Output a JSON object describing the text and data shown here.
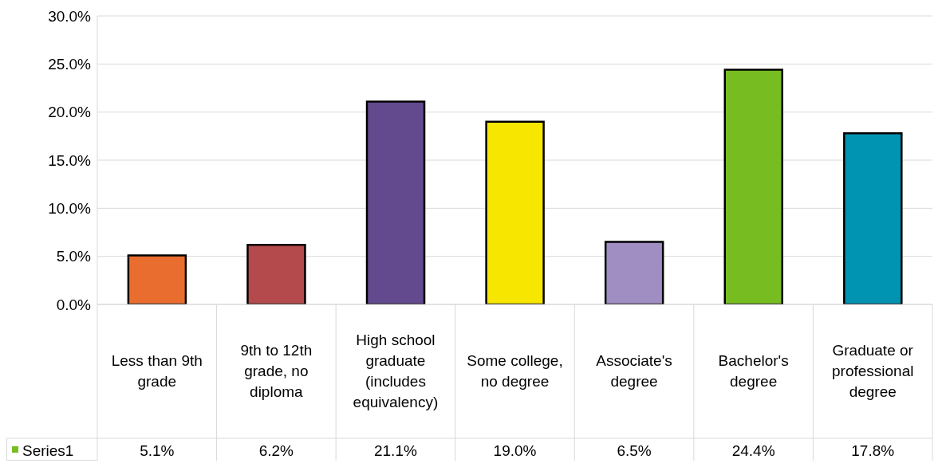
{
  "chart_data": {
    "type": "bar",
    "categories": [
      "Less than 9th grade",
      "9th to 12th grade, no diploma",
      "High school graduate (includes equivalency)",
      "Some college, no degree",
      "Associate's degree",
      "Bachelor's degree",
      "Graduate or professional degree"
    ],
    "series": [
      {
        "name": "Series1",
        "color": "#77bd22",
        "colors": [
          "#e96d2f",
          "#b54a4c",
          "#634a8e",
          "#f7e600",
          "#a08dc2",
          "#77bd22",
          "#0094b2"
        ],
        "values": [
          5.1,
          6.2,
          21.1,
          19.0,
          6.5,
          24.4,
          17.8
        ],
        "value_labels": [
          "5.1%",
          "6.2%",
          "21.1%",
          "19.0%",
          "6.5%",
          "24.4%",
          "17.8%"
        ]
      }
    ],
    "ylim": [
      0,
      30
    ],
    "yticks": [
      {
        "value": 0,
        "label": "0.0%"
      },
      {
        "value": 5,
        "label": "5.0%"
      },
      {
        "value": 10,
        "label": "10.0%"
      },
      {
        "value": 15,
        "label": "15.0%"
      },
      {
        "value": 20,
        "label": "20.0%"
      },
      {
        "value": 25,
        "label": "25.0%"
      },
      {
        "value": 30,
        "label": "30.0%"
      }
    ],
    "grid": "y",
    "legend": "bottom left"
  }
}
